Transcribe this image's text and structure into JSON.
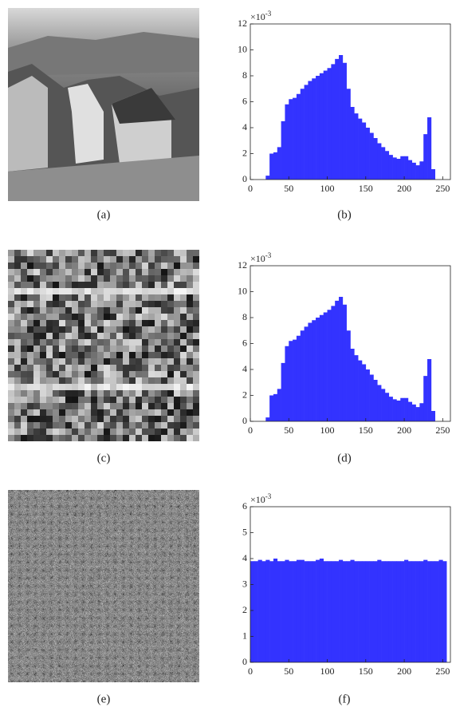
{
  "images": [
    {
      "caption": "(a)"
    },
    {
      "caption": "(c)"
    },
    {
      "caption": "(e)"
    }
  ],
  "chart_data": [
    {
      "type": "histogram",
      "caption": "(b)",
      "color": "#3333ff",
      "yscale_base": "×10",
      "yscale_exponent": "-3",
      "bins": [
        0,
        5,
        10,
        15,
        20,
        25,
        30,
        35,
        40,
        45,
        50,
        55,
        60,
        65,
        70,
        75,
        80,
        85,
        90,
        95,
        100,
        105,
        110,
        115,
        120,
        125,
        130,
        135,
        140,
        145,
        150,
        155,
        160,
        165,
        170,
        175,
        180,
        185,
        190,
        195,
        200,
        205,
        210,
        215,
        220,
        225,
        230,
        235,
        240,
        245,
        250,
        255
      ],
      "values": [
        0,
        0,
        0,
        0,
        0.3,
        2.0,
        2.1,
        2.5,
        4.5,
        5.8,
        6.2,
        6.3,
        6.6,
        7.0,
        7.3,
        7.6,
        7.8,
        8.0,
        8.2,
        8.4,
        8.6,
        8.9,
        9.3,
        9.6,
        9.0,
        7.0,
        5.6,
        5.1,
        4.7,
        4.4,
        4.0,
        3.6,
        3.2,
        2.8,
        2.5,
        2.2,
        1.9,
        1.7,
        1.6,
        1.8,
        1.8,
        1.5,
        1.3,
        1.1,
        1.4,
        3.5,
        4.8,
        0.8,
        0,
        0,
        0
      ],
      "xlim": [
        0,
        260
      ],
      "ylim": [
        0,
        12
      ],
      "xticks": [
        0,
        50,
        100,
        150,
        200,
        250
      ],
      "yticks": [
        0,
        2,
        4,
        6,
        8,
        10,
        12
      ]
    },
    {
      "type": "histogram",
      "caption": "(d)",
      "color": "#3333ff",
      "yscale_base": "×10",
      "yscale_exponent": "-3",
      "bins": [
        0,
        5,
        10,
        15,
        20,
        25,
        30,
        35,
        40,
        45,
        50,
        55,
        60,
        65,
        70,
        75,
        80,
        85,
        90,
        95,
        100,
        105,
        110,
        115,
        120,
        125,
        130,
        135,
        140,
        145,
        150,
        155,
        160,
        165,
        170,
        175,
        180,
        185,
        190,
        195,
        200,
        205,
        210,
        215,
        220,
        225,
        230,
        235,
        240,
        245,
        250,
        255
      ],
      "values": [
        0,
        0,
        0,
        0,
        0.3,
        2.0,
        2.1,
        2.5,
        4.5,
        5.8,
        6.2,
        6.3,
        6.6,
        7.0,
        7.3,
        7.6,
        7.8,
        8.0,
        8.2,
        8.4,
        8.6,
        8.9,
        9.3,
        9.6,
        9.0,
        7.0,
        5.6,
        5.1,
        4.7,
        4.4,
        4.0,
        3.6,
        3.2,
        2.8,
        2.5,
        2.2,
        1.9,
        1.7,
        1.6,
        1.8,
        1.8,
        1.5,
        1.3,
        1.1,
        1.4,
        3.5,
        4.8,
        0.8,
        0,
        0,
        0
      ],
      "xlim": [
        0,
        260
      ],
      "ylim": [
        0,
        12
      ],
      "xticks": [
        0,
        50,
        100,
        150,
        200,
        250
      ],
      "yticks": [
        0,
        2,
        4,
        6,
        8,
        10,
        12
      ]
    },
    {
      "type": "histogram",
      "caption": "(f)",
      "color": "#3333ff",
      "yscale_base": "×10",
      "yscale_exponent": "-3",
      "bins": [
        0,
        5,
        10,
        15,
        20,
        25,
        30,
        35,
        40,
        45,
        50,
        55,
        60,
        65,
        70,
        75,
        80,
        85,
        90,
        95,
        100,
        105,
        110,
        115,
        120,
        125,
        130,
        135,
        140,
        145,
        150,
        155,
        160,
        165,
        170,
        175,
        180,
        185,
        190,
        195,
        200,
        205,
        210,
        215,
        220,
        225,
        230,
        235,
        240,
        245,
        250,
        255
      ],
      "values": [
        3.9,
        3.9,
        3.95,
        3.9,
        3.95,
        3.9,
        4.0,
        3.9,
        3.9,
        3.95,
        3.9,
        3.9,
        3.95,
        3.95,
        3.9,
        3.9,
        3.9,
        3.95,
        4.0,
        3.9,
        3.9,
        3.9,
        3.9,
        3.95,
        3.9,
        3.9,
        3.95,
        3.9,
        3.9,
        3.9,
        3.9,
        3.9,
        3.9,
        3.95,
        3.9,
        3.9,
        3.9,
        3.9,
        3.9,
        3.9,
        3.95,
        3.9,
        3.9,
        3.9,
        3.9,
        3.95,
        3.9,
        3.9,
        3.9,
        3.95,
        3.9
      ],
      "xlim": [
        0,
        260
      ],
      "ylim": [
        0,
        6
      ],
      "xticks": [
        0,
        50,
        100,
        150,
        200,
        250
      ],
      "yticks": [
        0,
        1,
        2,
        3,
        4,
        5,
        6
      ]
    }
  ]
}
